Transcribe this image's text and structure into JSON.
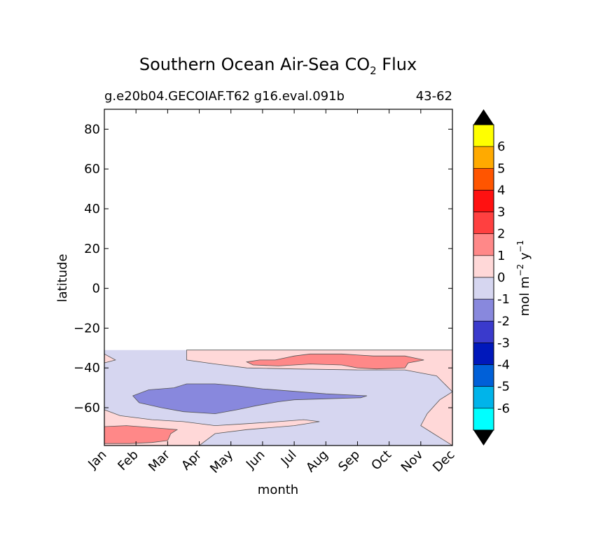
{
  "chart_data": {
    "type": "contour",
    "title_prefix": "Southern Ocean Air-Sea CO",
    "title_subscript": "2",
    "title_suffix": " Flux",
    "subtitle_left": "g.e20b04.GECOIAF.T62 g16.eval.091b",
    "subtitle_right": "43-62",
    "xlabel": "month",
    "ylabel": "latitude",
    "x_ticks": [
      "Jan",
      "Feb",
      "Mar",
      "Apr",
      "May",
      "Jun",
      "Jul",
      "Aug",
      "Sep",
      "Oct",
      "Nov",
      "Dec"
    ],
    "y_ticks": [
      "80",
      "60",
      "40",
      "20",
      "0",
      "−20",
      "−40",
      "−60"
    ],
    "y_tick_values": [
      80,
      60,
      40,
      20,
      0,
      -20,
      -40,
      -60
    ],
    "ylim": [
      -79,
      90
    ],
    "xlim": [
      0,
      11
    ],
    "data_lat_max": -31,
    "colorbar": {
      "label": "mol m",
      "label_sup1": "−2",
      "label_mid": " y",
      "label_sup2": "−1",
      "tick_labels": [
        "6",
        "5",
        "4",
        "3",
        "2",
        "1",
        "0",
        "-1",
        "-2",
        "-3",
        "-4",
        "-5",
        "-6"
      ],
      "colors": [
        "#ffff00",
        "#ffaa00",
        "#ff5500",
        "#ff1111",
        "#ff4040",
        "#ff8888",
        "#ffd8d8",
        "#d6d6f0",
        "#8888dd",
        "#3a3acc",
        "#0018bb",
        "#0060d8",
        "#00b4ea",
        "#00ffff"
      ],
      "over_color": "#000000",
      "under_color": "#000000"
    },
    "regions": [
      {
        "name": "negative 0 to -1 background",
        "level": -0.5,
        "color": "#d6d6f0"
      },
      {
        "name": "positive band north",
        "level": 0.5,
        "color": "#ffd8d8",
        "months": [
          2.6,
          3.5,
          4.5,
          6,
          8,
          9.5,
          10.5,
          11
        ],
        "lat_south": [
          -36,
          -38,
          -40,
          -40.5,
          -41,
          -41,
          -44,
          -52
        ]
      },
      {
        "name": "positive core 1 to 2",
        "level": 1.5,
        "color": "#ff8888",
        "center_month": 7.2,
        "center_lat": -36.5,
        "month_span": [
          4.5,
          10.1
        ],
        "lat_span": [
          -41,
          -33
        ]
      },
      {
        "name": "negative core -1 to -2",
        "level": -1.5,
        "color": "#8888dd",
        "center_month": 3.5,
        "center_lat": -56,
        "month_span": [
          0.8,
          8.3
        ],
        "lat_span": [
          -63,
          -48
        ]
      },
      {
        "name": "positive south-west",
        "level": 0.5,
        "color": "#ffd8d8",
        "month_span": [
          0,
          6.8
        ],
        "lat_span": [
          -79,
          -61
        ]
      },
      {
        "name": "positive south-west core",
        "level": 1.5,
        "color": "#ff8888",
        "month_span": [
          0,
          2.3
        ],
        "lat_span": [
          -78,
          -69
        ]
      },
      {
        "name": "positive south-east",
        "level": 0.5,
        "color": "#ffd8d8",
        "month_span": [
          10,
          11
        ],
        "lat_span": [
          -79,
          -52
        ]
      }
    ]
  }
}
